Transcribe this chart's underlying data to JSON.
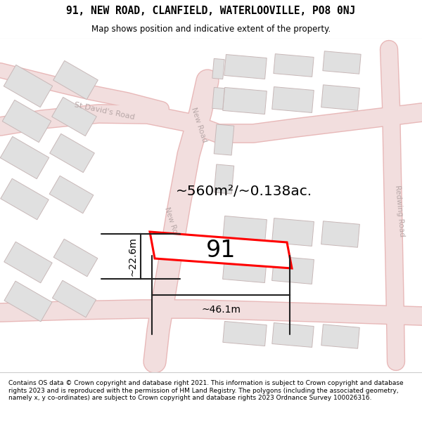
{
  "title_line1": "91, NEW ROAD, CLANFIELD, WATERLOOVILLE, PO8 0NJ",
  "title_line2": "Map shows position and indicative extent of the property.",
  "footer_text": "Contains OS data © Crown copyright and database right 2021. This information is subject to Crown copyright and database rights 2023 and is reproduced with the permission of HM Land Registry. The polygons (including the associated geometry, namely x, y co-ordinates) are subject to Crown copyright and database rights 2023 Ordnance Survey 100026316.",
  "area_label": "~560m²/~0.138ac.",
  "plot_number": "91",
  "width_label": "~46.1m",
  "height_label": "~22.6m",
  "bg_color": "#f9f6f6",
  "road_fill": "#f2dede",
  "road_edge": "#e8b8b8",
  "building_fill": "#e0e0e0",
  "building_edge": "#c8b8b8",
  "plot_fill": "#ffffff",
  "plot_edge": "#ff0000",
  "road_label_color": "#b8a8a8",
  "dim_color": "#222222",
  "title_fontsize": 10.5,
  "subtitle_fontsize": 8.5,
  "footer_fontsize": 6.5
}
